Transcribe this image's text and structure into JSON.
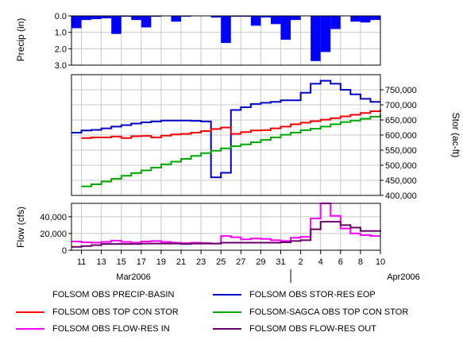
{
  "chart_data": [
    {
      "type": "bar",
      "name": "precip-panel",
      "ylabel": "Precip (in)",
      "ylim": [
        3.0,
        0.0
      ],
      "y_inverted": true,
      "yticks": [
        "0.0",
        "1.0",
        "2.0",
        "3.0"
      ],
      "grid": true,
      "x": [
        "2006-03-10",
        "2006-03-11",
        "2006-03-12",
        "2006-03-13",
        "2006-03-14",
        "2006-03-15",
        "2006-03-16",
        "2006-03-17",
        "2006-03-18",
        "2006-03-19",
        "2006-03-20",
        "2006-03-21",
        "2006-03-22",
        "2006-03-23",
        "2006-03-24",
        "2006-03-25",
        "2006-03-26",
        "2006-03-27",
        "2006-03-28",
        "2006-03-29",
        "2006-03-30",
        "2006-03-31",
        "2006-04-01",
        "2006-04-02",
        "2006-04-03",
        "2006-04-04",
        "2006-04-05",
        "2006-04-06",
        "2006-04-07",
        "2006-04-08",
        "2006-04-09"
      ],
      "series": [
        {
          "name": "FOLSOM OBS PRECIP-BASIN",
          "color": "#0000ff",
          "values": [
            0.75,
            0.25,
            0.2,
            0.15,
            1.1,
            0.05,
            0.25,
            0.7,
            0.05,
            0,
            0.35,
            0.05,
            0,
            0,
            0.1,
            1.65,
            0.05,
            0.05,
            0.6,
            0.1,
            0.5,
            1.45,
            0.25,
            0,
            2.75,
            2.2,
            0.8,
            0,
            0.35,
            0.4,
            0.25
          ]
        }
      ]
    },
    {
      "type": "line",
      "name": "storage-panel",
      "ylabel": "Stor (ac-ft)",
      "ylim": [
        400000,
        800000
      ],
      "yticks": [
        "400,000",
        "450,000",
        "500,000",
        "550,000",
        "600,000",
        "650,000",
        "700,000",
        "750,000"
      ],
      "y_axis_side": "right",
      "grid": true,
      "series": [
        {
          "name": "FOLSOM OBS  STOR-RES EOP",
          "color": "#0000cc",
          "x": [
            "2006-03-10",
            "2006-03-11",
            "2006-03-12",
            "2006-03-13",
            "2006-03-14",
            "2006-03-15",
            "2006-03-16",
            "2006-03-17",
            "2006-03-18",
            "2006-03-19",
            "2006-03-20",
            "2006-03-21",
            "2006-03-22",
            "2006-03-23",
            "2006-03-24",
            "2006-03-25",
            "2006-03-26",
            "2006-03-27",
            "2006-03-28",
            "2006-03-29",
            "2006-03-30",
            "2006-03-31",
            "2006-04-01",
            "2006-04-02",
            "2006-04-03",
            "2006-04-04",
            "2006-04-05",
            "2006-04-06",
            "2006-04-07",
            "2006-04-08",
            "2006-04-09"
          ],
          "values": [
            608000,
            615000,
            617000,
            622000,
            628000,
            633000,
            638000,
            642000,
            645000,
            648000,
            648000,
            648000,
            647000,
            645000,
            460000,
            475000,
            683000,
            692000,
            703000,
            707000,
            710000,
            715000,
            715000,
            740000,
            770000,
            780000,
            770000,
            750000,
            735000,
            720000,
            710000
          ]
        },
        {
          "name": "FOLSOM OBS TOP CON STOR",
          "color": "#ff0000",
          "x": [
            "2006-03-11",
            "2006-03-12",
            "2006-03-13",
            "2006-03-14",
            "2006-03-15",
            "2006-03-16",
            "2006-03-17",
            "2006-03-18",
            "2006-03-19",
            "2006-03-20",
            "2006-03-21",
            "2006-03-22",
            "2006-03-23",
            "2006-03-24",
            "2006-03-25",
            "2006-03-26",
            "2006-03-27",
            "2006-03-28",
            "2006-03-29",
            "2006-03-30",
            "2006-03-31",
            "2006-04-01",
            "2006-04-02",
            "2006-04-03",
            "2006-04-04",
            "2006-04-05",
            "2006-04-06",
            "2006-04-07",
            "2006-04-08",
            "2006-04-09",
            "2006-04-10"
          ],
          "values": [
            590000,
            592000,
            592000,
            595000,
            590000,
            596000,
            597000,
            592000,
            598000,
            602000,
            604000,
            608000,
            613000,
            620000,
            625000,
            604000,
            610000,
            615000,
            616000,
            622000,
            628000,
            636000,
            641000,
            646000,
            651000,
            656000,
            662000,
            667000,
            673000,
            679000,
            685000
          ]
        },
        {
          "name": "FOLSOM-SAGCA OBS TOP CON STOR",
          "color": "#00a800",
          "x": [
            "2006-03-11",
            "2006-03-12",
            "2006-03-13",
            "2006-03-14",
            "2006-03-15",
            "2006-03-16",
            "2006-03-17",
            "2006-03-18",
            "2006-03-19",
            "2006-03-20",
            "2006-03-21",
            "2006-03-22",
            "2006-03-23",
            "2006-03-24",
            "2006-03-25",
            "2006-03-26",
            "2006-03-27",
            "2006-03-28",
            "2006-03-29",
            "2006-03-30",
            "2006-03-31",
            "2006-04-01",
            "2006-04-02",
            "2006-04-03",
            "2006-04-04",
            "2006-04-05",
            "2006-04-06",
            "2006-04-07",
            "2006-04-08",
            "2006-04-09",
            "2006-04-10"
          ],
          "values": [
            430000,
            437000,
            446000,
            455000,
            465000,
            474000,
            483000,
            492000,
            503000,
            512000,
            521000,
            531000,
            540000,
            548000,
            556000,
            563000,
            569000,
            576000,
            584000,
            592000,
            601000,
            608000,
            616000,
            621000,
            628000,
            636000,
            643000,
            648000,
            654000,
            661000,
            668000
          ]
        }
      ]
    },
    {
      "type": "line",
      "name": "flow-panel",
      "ylabel": "Flow (cfs)",
      "ylim": [
        0,
        56000
      ],
      "yticks": [
        "0",
        "20,000",
        "40,000"
      ],
      "grid": true,
      "series": [
        {
          "name": "FOLSOM OBS FLOW-RES IN",
          "color": "#ff00ff",
          "x": [
            "2006-03-10",
            "2006-03-11",
            "2006-03-12",
            "2006-03-13",
            "2006-03-14",
            "2006-03-15",
            "2006-03-16",
            "2006-03-17",
            "2006-03-18",
            "2006-03-19",
            "2006-03-20",
            "2006-03-21",
            "2006-03-22",
            "2006-03-23",
            "2006-03-24",
            "2006-03-25",
            "2006-03-26",
            "2006-03-27",
            "2006-03-28",
            "2006-03-29",
            "2006-03-30",
            "2006-03-31",
            "2006-04-01",
            "2006-04-02",
            "2006-04-03",
            "2006-04-04",
            "2006-04-05",
            "2006-04-06",
            "2006-04-07",
            "2006-04-08",
            "2006-04-09",
            "2006-04-10"
          ],
          "values": [
            10500,
            9500,
            9000,
            10000,
            11500,
            10000,
            9000,
            10500,
            11000,
            10000,
            9000,
            8500,
            9000,
            8500,
            8000,
            17000,
            15500,
            13000,
            14000,
            13500,
            12000,
            11000,
            15000,
            16000,
            38000,
            56000,
            41000,
            26000,
            20000,
            18000,
            17000,
            17000
          ]
        },
        {
          "name": "FOLSOM OBS FLOW-RES OUT",
          "color": "#660066",
          "x": [
            "2006-03-10",
            "2006-03-11",
            "2006-03-12",
            "2006-03-13",
            "2006-03-14",
            "2006-03-15",
            "2006-03-16",
            "2006-03-17",
            "2006-03-18",
            "2006-03-19",
            "2006-03-20",
            "2006-03-21",
            "2006-03-22",
            "2006-03-23",
            "2006-03-24",
            "2006-03-25",
            "2006-03-26",
            "2006-03-27",
            "2006-03-28",
            "2006-03-29",
            "2006-03-30",
            "2006-03-31",
            "2006-04-01",
            "2006-04-02",
            "2006-04-03",
            "2006-04-04",
            "2006-04-05",
            "2006-04-06",
            "2006-04-07",
            "2006-04-08",
            "2006-04-09",
            "2006-04-10"
          ],
          "values": [
            4000,
            5000,
            6000,
            7500,
            7500,
            7500,
            7500,
            8000,
            8000,
            8000,
            8000,
            7500,
            8000,
            8000,
            8000,
            9000,
            9000,
            9000,
            9000,
            9000,
            9000,
            9500,
            11000,
            12000,
            25000,
            34000,
            34000,
            30000,
            27000,
            23000,
            23000,
            24000
          ]
        }
      ]
    }
  ],
  "x_axis": {
    "range": [
      "2006-03-10",
      "2006-04-10"
    ],
    "day_labels": [
      "11",
      "13",
      "15",
      "17",
      "19",
      "21",
      "23",
      "25",
      "27",
      "29",
      "31",
      "2",
      "4",
      "6",
      "8",
      "10"
    ],
    "month_labels": [
      "Mar2006",
      "Apr2006"
    ]
  },
  "legend": [
    {
      "label": "FOLSOM OBS PRECIP-BASIN",
      "color": ""
    },
    {
      "label": "FOLSOM OBS  STOR-RES EOP",
      "color": "#0000cc"
    },
    {
      "label": "FOLSOM OBS TOP CON STOR",
      "color": "#ff0000"
    },
    {
      "label": "FOLSOM-SAGCA OBS TOP CON STOR",
      "color": "#00a800"
    },
    {
      "label": "FOLSOM OBS FLOW-RES IN",
      "color": "#ff00ff"
    },
    {
      "label": "FOLSOM OBS FLOW-RES OUT",
      "color": "#660066"
    }
  ]
}
